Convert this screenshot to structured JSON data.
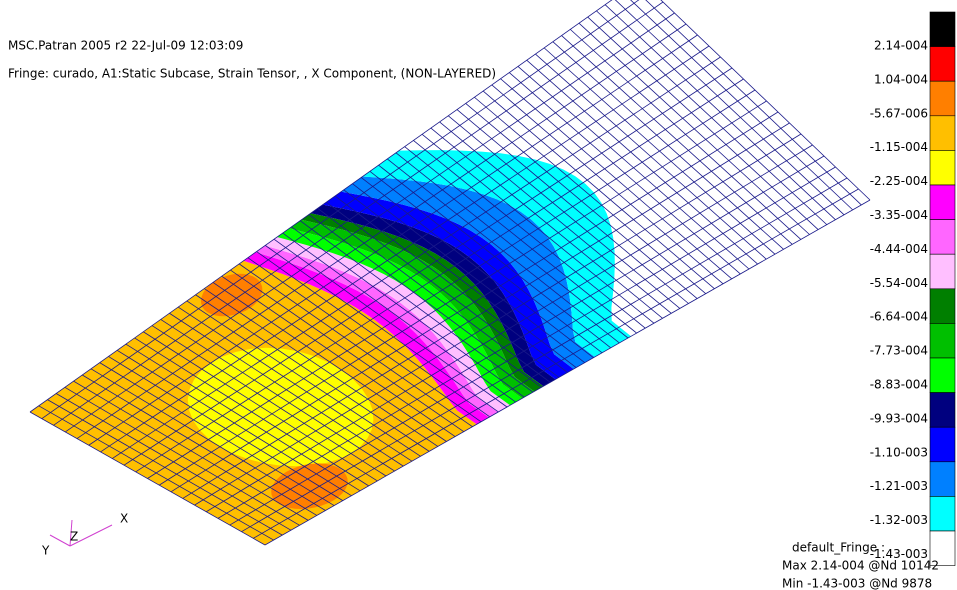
{
  "header": {
    "title": "MSC.Patran 2005 r2 22-Jul-09 12:03:09",
    "subtitle": "Fringe: curado, A1:Static Subcase, Strain Tensor, , X Component, (NON-LAYERED)"
  },
  "legend": {
    "colors": [
      "#000000",
      "#ff0000",
      "#ff7f00",
      "#ffbf00",
      "#ffff00",
      "#ff00ff",
      "#ff66ff",
      "#ffbfff",
      "#007f00",
      "#00bf00",
      "#00ff00",
      "#00007f",
      "#0000ff",
      "#0080ff",
      "#00ffff",
      "#ffffff"
    ],
    "labels": [
      "2.14-004",
      "1.04-004",
      "-5.67-006",
      "-1.15-004",
      "-2.25-004",
      "-3.35-004",
      "-4.44-004",
      "-5.54-004",
      "-6.64-004",
      "-7.73-004",
      "-8.83-004",
      "-9.93-004",
      "-1.10-003",
      "-1.21-003",
      "-1.32-003",
      "-1.43-003"
    ]
  },
  "footer": {
    "lines": [
      "default_Fringe :",
      "Max 2.14-004 @Nd 10142",
      "Min -1.43-003 @Nd 9878"
    ]
  },
  "triad": {
    "labels": [
      "Y",
      "Z",
      "X"
    ]
  }
}
